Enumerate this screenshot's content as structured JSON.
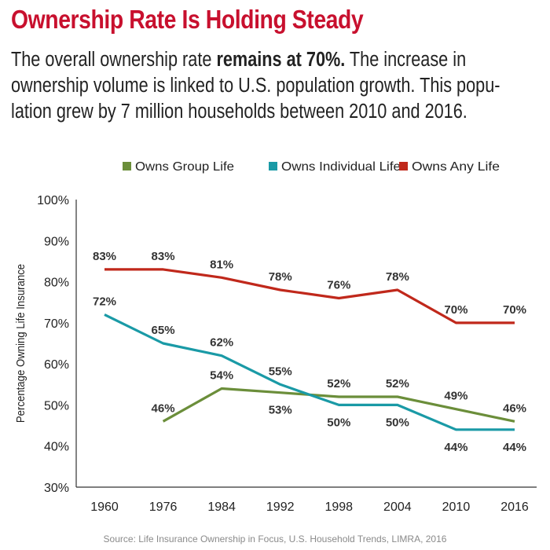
{
  "header": {
    "title": "Ownership Rate Is Holding Steady",
    "subtitle_lines": [
      {
        "pre": "The overall ownership rate ",
        "bold": "remains at 70%.",
        "post": " The increase in"
      },
      {
        "pre": "ownership volume is linked to U.S. population growth. This popu-",
        "bold": "",
        "post": ""
      },
      {
        "pre": "lation grew by 7 million households between 2010 and 2016.",
        "bold": "",
        "post": ""
      }
    ]
  },
  "source": "Source: Life Insurance Ownership in Focus, U.S. Household Trends, LIMRA, 2016",
  "chart_data": {
    "type": "line",
    "categories": [
      "1960",
      "1976",
      "1984",
      "1992",
      "1998",
      "2004",
      "2010",
      "2016"
    ],
    "ylabel": "Percentage Owning Life Insurance",
    "ylim": [
      30,
      100
    ],
    "yticks": [
      30,
      40,
      50,
      60,
      70,
      80,
      90,
      100
    ],
    "ytick_labels": [
      "30%",
      "40%",
      "50%",
      "60%",
      "70%",
      "80%",
      "90%",
      "100%"
    ],
    "legend_position": "top",
    "series": [
      {
        "name": "Owns Group Life",
        "color": "#6b8e3a",
        "values": [
          null,
          46,
          54,
          53,
          52,
          52,
          49,
          46
        ],
        "labels": [
          null,
          "46%",
          "54%",
          "53%",
          "52%",
          "52%",
          "49%",
          "46%"
        ],
        "label_side": [
          null,
          "above",
          "above",
          "below",
          "above",
          "above",
          "above",
          "above"
        ]
      },
      {
        "name": "Owns Individual Life",
        "color": "#1a9aa6",
        "values": [
          72,
          65,
          62,
          55,
          50,
          50,
          44,
          44
        ],
        "labels": [
          "72%",
          "65%",
          "62%",
          "55%",
          "50%",
          "50%",
          "44%",
          "44%"
        ],
        "label_side": [
          "above",
          "above",
          "above",
          "above",
          "below",
          "below",
          "below",
          "below"
        ]
      },
      {
        "name": "Owns Any Life",
        "color": "#c0281b",
        "values": [
          83,
          83,
          81,
          78,
          76,
          78,
          70,
          70
        ],
        "labels": [
          "83%",
          "83%",
          "81%",
          "78%",
          "76%",
          "78%",
          "70%",
          "70%"
        ],
        "label_side": [
          "above",
          "above",
          "above",
          "above",
          "above",
          "above",
          "above",
          "above"
        ]
      }
    ]
  }
}
